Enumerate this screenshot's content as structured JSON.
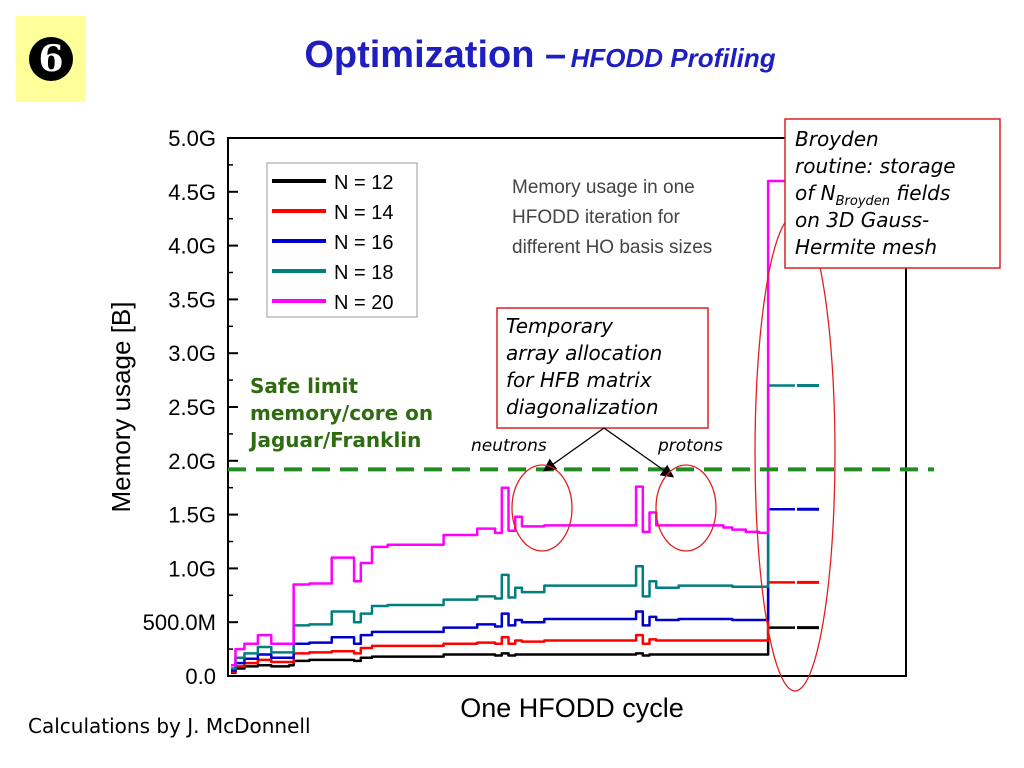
{
  "badge": {
    "number_icon": "circled-6-icon",
    "number": "6"
  },
  "slide": {
    "title_main": "Optimization –",
    "title_sub": "HFODD Profiling",
    "footer": "Calculations by J. McDonnell"
  },
  "chart_data": {
    "type": "line",
    "xlabel": "One HFODD cycle",
    "ylabel": "Memory usage [B]",
    "ylim": [
      0,
      5.0
    ],
    "y_unit": "G",
    "y_ticks": [
      0,
      0.5,
      1.0,
      1.5,
      2.0,
      2.5,
      3.0,
      3.5,
      4.0,
      4.5,
      5.0
    ],
    "y_tick_labels": [
      "0.0",
      "500.0M",
      "1.0G",
      "1.5G",
      "2.0G",
      "2.5G",
      "3.0G",
      "3.5G",
      "4.0G",
      "4.5G",
      "5.0G"
    ],
    "legend_placement": "top-left",
    "x": [
      0,
      2,
      6,
      12,
      18,
      26,
      28,
      35,
      45,
      55,
      58,
      63,
      70,
      84,
      95,
      110,
      118,
      121,
      124,
      127,
      130,
      140,
      150,
      165,
      178,
      181,
      184,
      187,
      190,
      200,
      210,
      220,
      224,
      230,
      236,
      240,
      252
    ],
    "series": [
      {
        "name": "N = 12",
        "color": "#000000",
        "values": [
          0.03,
          0.07,
          0.09,
          0.1,
          0.09,
          0.1,
          0.14,
          0.15,
          0.15,
          0.14,
          0.17,
          0.18,
          0.18,
          0.18,
          0.2,
          0.2,
          0.19,
          0.21,
          0.19,
          0.2,
          0.2,
          0.2,
          0.2,
          0.2,
          0.2,
          0.21,
          0.19,
          0.2,
          0.2,
          0.2,
          0.2,
          0.2,
          0.2,
          0.2,
          0.2,
          0.45,
          0.45
        ],
        "end_level": 0.45
      },
      {
        "name": "N = 14",
        "color": "#ff0000",
        "values": [
          0.04,
          0.09,
          0.12,
          0.15,
          0.13,
          0.13,
          0.21,
          0.22,
          0.23,
          0.21,
          0.26,
          0.28,
          0.28,
          0.28,
          0.3,
          0.31,
          0.3,
          0.36,
          0.3,
          0.33,
          0.32,
          0.33,
          0.33,
          0.33,
          0.33,
          0.38,
          0.3,
          0.34,
          0.33,
          0.33,
          0.33,
          0.33,
          0.33,
          0.33,
          0.33,
          0.87,
          0.87
        ],
        "end_level": 0.87
      },
      {
        "name": "N = 16",
        "color": "#0000cc",
        "values": [
          0.05,
          0.12,
          0.16,
          0.2,
          0.17,
          0.17,
          0.3,
          0.31,
          0.36,
          0.3,
          0.38,
          0.41,
          0.41,
          0.41,
          0.45,
          0.48,
          0.46,
          0.58,
          0.47,
          0.52,
          0.5,
          0.53,
          0.53,
          0.53,
          0.53,
          0.6,
          0.47,
          0.55,
          0.52,
          0.53,
          0.53,
          0.53,
          0.52,
          0.52,
          0.52,
          1.55,
          1.55
        ],
        "end_level": 1.55
      },
      {
        "name": "N = 18",
        "color": "#007f7f",
        "values": [
          0.07,
          0.17,
          0.21,
          0.27,
          0.22,
          0.22,
          0.47,
          0.48,
          0.6,
          0.5,
          0.58,
          0.65,
          0.66,
          0.66,
          0.71,
          0.74,
          0.72,
          0.94,
          0.73,
          0.82,
          0.78,
          0.84,
          0.84,
          0.84,
          0.84,
          1.02,
          0.74,
          0.88,
          0.82,
          0.84,
          0.84,
          0.84,
          0.83,
          0.83,
          0.83,
          2.7,
          2.7
        ],
        "end_level": 2.7
      },
      {
        "name": "N = 20",
        "color": "#ff00ff",
        "values": [
          0.1,
          0.25,
          0.3,
          0.38,
          0.3,
          0.3,
          0.85,
          0.86,
          1.1,
          0.88,
          1.05,
          1.2,
          1.22,
          1.22,
          1.31,
          1.37,
          1.33,
          1.75,
          1.35,
          1.48,
          1.39,
          1.4,
          1.4,
          1.4,
          1.4,
          1.76,
          1.34,
          1.52,
          1.4,
          1.4,
          1.4,
          1.38,
          1.36,
          1.34,
          1.33,
          4.6,
          4.6
        ]
      }
    ],
    "safe_limit": {
      "value": 1.92,
      "color": "#228b22"
    },
    "annotations": {
      "description": [
        "Memory usage in one",
        "HFODD iteration for",
        "different HO basis sizes"
      ],
      "safe_limit_label": [
        "Safe limit",
        "memory/core on",
        "Jaguar/Franklin"
      ],
      "temporary_box": [
        "Temporary",
        "array allocation",
        "for HFB matrix",
        "diagonalization"
      ],
      "neutrons": "neutrons",
      "protons": "protons",
      "broyden_line1": "Broyden",
      "broyden_line2": "routine: storage",
      "broyden_line3_prefix": "of N",
      "broyden_subscript": "Broyden",
      "broyden_line3_suffix": " fields",
      "broyden_line4": "on 3D Gauss-",
      "broyden_line5": "Hermite mesh"
    }
  }
}
